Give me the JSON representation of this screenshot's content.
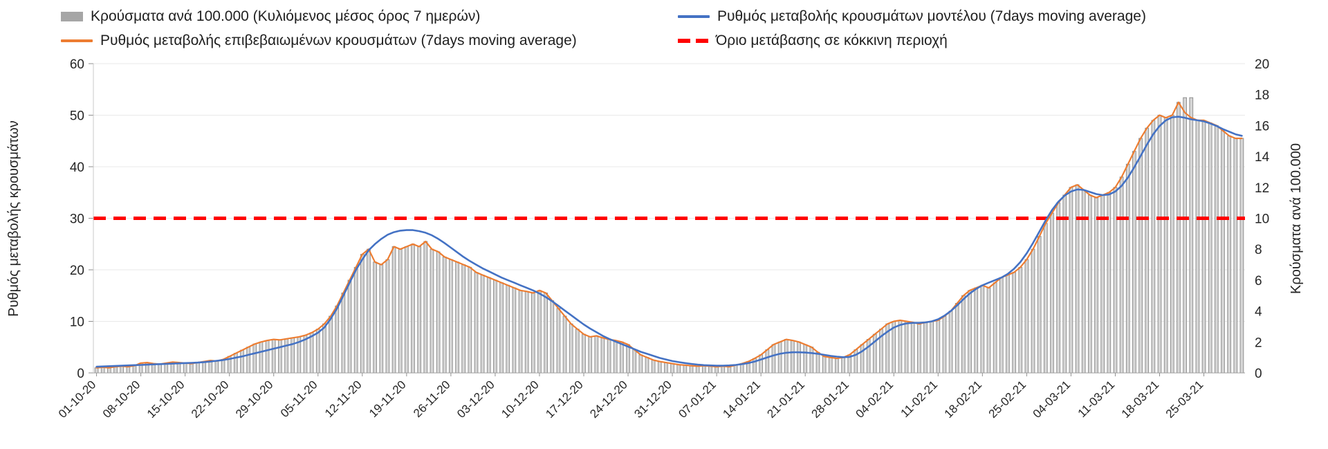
{
  "legend": {
    "items": [
      {
        "id": "cases_per_100k",
        "label": "Κρούσματα ανά 100.000 (Κυλιόμενος μέσος όρος 7 ημερών)",
        "swatch": "#a6a6a6"
      },
      {
        "id": "model_rate",
        "label": "Ρυθμός μεταβολής κρουσμάτων μοντέλου (7days moving average)",
        "swatch": "#4472c4"
      },
      {
        "id": "confirmed_rate",
        "label": "Ρυθμός μεταβολής επιβεβαιωμένων κρουσμάτων (7days moving average)",
        "swatch": "#ed7d31"
      },
      {
        "id": "threshold",
        "label": "Όριο μετάβασης σε κόκκινη περιοχή",
        "swatch": "#ff0000"
      }
    ]
  },
  "chart_data": {
    "type": "combo",
    "n_points": 182,
    "x_tick_interval": 7,
    "x_tick_labels": [
      "01-10-20",
      "08-10-20",
      "15-10-20",
      "22-10-20",
      "29-10-20",
      "05-11-20",
      "12-11-20",
      "19-11-20",
      "26-11-20",
      "03-12-20",
      "10-12-20",
      "17-12-20",
      "24-12-20",
      "31-12-20",
      "07-01-21",
      "14-01-21",
      "21-01-21",
      "28-01-21",
      "04-02-21",
      "11-02-21",
      "18-02-21",
      "25-02-21",
      "04-03-21",
      "11-03-21",
      "18-03-21",
      "25-03-21"
    ],
    "left_axis": {
      "title": "Ρυθμός μεταβολής κρουσμάτων",
      "min": 0,
      "max": 60,
      "ticks": [
        0,
        10,
        20,
        30,
        40,
        50,
        60
      ]
    },
    "right_axis": {
      "title": "Κρούσματα ανά 100.000",
      "min": 0,
      "max": 20,
      "ticks": [
        0,
        2,
        4,
        6,
        8,
        10,
        12,
        14,
        16,
        18,
        20
      ]
    },
    "threshold": {
      "value": 30,
      "axis": "left",
      "color": "#ff0000",
      "label": "Όριο μετάβασης σε κόκκινη περιοχή"
    },
    "grid": "horizontal",
    "legend_position": "top",
    "series": [
      {
        "id": "cases_per_100k",
        "name": "Κρούσματα ανά 100.000 (Κυλιόμενος μέσος όρος 7 ημερών)",
        "type": "bar",
        "axis": "right",
        "fill": "#d6d6d6",
        "stroke": "#8f8f8f",
        "values": [
          0.33,
          0.37,
          0.33,
          0.4,
          0.43,
          0.4,
          0.47,
          0.63,
          0.67,
          0.6,
          0.57,
          0.63,
          0.7,
          0.67,
          0.63,
          0.6,
          0.67,
          0.73,
          0.8,
          0.77,
          0.87,
          1.07,
          1.27,
          1.47,
          1.67,
          1.87,
          2.0,
          2.1,
          2.17,
          2.13,
          2.2,
          2.27,
          2.33,
          2.43,
          2.6,
          2.83,
          3.17,
          3.67,
          4.33,
          5.17,
          6.0,
          6.83,
          7.67,
          8.0,
          7.17,
          7.0,
          7.33,
          8.17,
          8.0,
          8.17,
          8.33,
          8.17,
          8.5,
          8.0,
          7.83,
          7.5,
          7.33,
          7.17,
          7.0,
          6.83,
          6.5,
          6.33,
          6.17,
          6.0,
          5.83,
          5.67,
          5.5,
          5.33,
          5.27,
          5.17,
          5.33,
          5.17,
          4.67,
          4.17,
          3.67,
          3.17,
          2.83,
          2.5,
          2.33,
          2.4,
          2.27,
          2.17,
          2.1,
          2.0,
          1.83,
          1.5,
          1.17,
          1.0,
          0.83,
          0.73,
          0.67,
          0.6,
          0.53,
          0.5,
          0.47,
          0.43,
          0.47,
          0.43,
          0.4,
          0.43,
          0.4,
          0.5,
          0.6,
          0.73,
          0.93,
          1.17,
          1.5,
          1.83,
          2.0,
          2.17,
          2.1,
          2.0,
          1.83,
          1.67,
          1.33,
          1.07,
          1.0,
          0.93,
          1.0,
          1.17,
          1.5,
          1.83,
          2.17,
          2.5,
          2.83,
          3.17,
          3.33,
          3.4,
          3.33,
          3.27,
          3.17,
          3.27,
          3.33,
          3.4,
          3.67,
          4.0,
          4.5,
          5.0,
          5.33,
          5.5,
          5.67,
          5.5,
          5.83,
          6.17,
          6.33,
          6.5,
          6.83,
          7.33,
          8.0,
          8.83,
          9.67,
          10.33,
          11.0,
          11.5,
          12.0,
          12.17,
          11.83,
          11.5,
          11.33,
          11.5,
          11.67,
          12.0,
          12.67,
          13.5,
          14.33,
          15.17,
          15.83,
          16.33,
          16.67,
          16.5,
          16.67,
          17.5,
          17.8,
          17.8,
          16.33,
          16.33,
          16.17,
          16.0,
          15.67,
          15.33,
          15.17,
          15.17
        ]
      },
      {
        "id": "confirmed_rate",
        "name": "Ρυθμός μεταβολής επιβεβαιωμένων κρουσμάτων (7days moving average)",
        "type": "line",
        "axis": "left",
        "color": "#ed7d31",
        "width": 2.2,
        "values": [
          1.0,
          1.1,
          1.0,
          1.2,
          1.3,
          1.2,
          1.4,
          1.9,
          2.0,
          1.8,
          1.7,
          1.9,
          2.1,
          2.0,
          1.9,
          1.8,
          2.0,
          2.2,
          2.4,
          2.3,
          2.6,
          3.2,
          3.8,
          4.4,
          5.0,
          5.6,
          6.0,
          6.3,
          6.5,
          6.4,
          6.6,
          6.8,
          7.0,
          7.3,
          7.8,
          8.5,
          9.5,
          11.0,
          13.0,
          15.5,
          18.0,
          20.5,
          23.0,
          24.0,
          21.5,
          21.0,
          22.0,
          24.5,
          24.0,
          24.5,
          25.0,
          24.5,
          25.5,
          24.0,
          23.5,
          22.5,
          22.0,
          21.5,
          21.0,
          20.5,
          19.5,
          19.0,
          18.5,
          18.0,
          17.5,
          17.0,
          16.5,
          16.0,
          15.8,
          15.5,
          16.0,
          15.5,
          14.0,
          12.5,
          11.0,
          9.5,
          8.5,
          7.5,
          7.0,
          7.2,
          6.8,
          6.5,
          6.3,
          6.0,
          5.5,
          4.5,
          3.5,
          3.0,
          2.5,
          2.2,
          2.0,
          1.8,
          1.6,
          1.5,
          1.4,
          1.3,
          1.4,
          1.3,
          1.2,
          1.3,
          1.2,
          1.5,
          1.8,
          2.2,
          2.8,
          3.5,
          4.5,
          5.5,
          6.0,
          6.5,
          6.3,
          6.0,
          5.5,
          5.0,
          4.0,
          3.2,
          3.0,
          2.8,
          3.0,
          3.5,
          4.5,
          5.5,
          6.5,
          7.5,
          8.5,
          9.5,
          10.0,
          10.2,
          10.0,
          9.8,
          9.5,
          9.8,
          10.0,
          10.2,
          11.0,
          12.0,
          13.5,
          15.0,
          16.0,
          16.5,
          17.0,
          16.5,
          17.5,
          18.5,
          19.0,
          19.5,
          20.5,
          22.0,
          24.0,
          26.5,
          29.0,
          31.0,
          33.0,
          34.5,
          36.0,
          36.5,
          35.5,
          34.5,
          34.0,
          34.5,
          35.0,
          36.0,
          38.0,
          40.5,
          43.0,
          45.5,
          47.5,
          49.0,
          50.0,
          49.5,
          50.0,
          52.5,
          50.5,
          49.5,
          49.0,
          49.0,
          48.5,
          48.0,
          47.0,
          46.0,
          45.5,
          45.5
        ]
      },
      {
        "id": "model_rate",
        "name": "Ρυθμός μεταβολής κρουσμάτων μοντέλου (7days moving average)",
        "type": "line",
        "axis": "left",
        "color": "#4472c4",
        "width": 2.6,
        "values": [
          1.2,
          1.25,
          1.3,
          1.35,
          1.4,
          1.45,
          1.5,
          1.55,
          1.6,
          1.65,
          1.7,
          1.75,
          1.8,
          1.85,
          1.9,
          1.95,
          2.0,
          2.1,
          2.2,
          2.35,
          2.5,
          2.7,
          2.95,
          3.2,
          3.5,
          3.8,
          4.1,
          4.4,
          4.7,
          5.0,
          5.3,
          5.6,
          6.0,
          6.5,
          7.1,
          7.8,
          8.8,
          10.5,
          12.5,
          15.0,
          17.5,
          20.0,
          22.0,
          23.8,
          25.0,
          26.0,
          26.8,
          27.3,
          27.6,
          27.7,
          27.7,
          27.5,
          27.2,
          26.7,
          26.0,
          25.2,
          24.3,
          23.4,
          22.5,
          21.7,
          21.0,
          20.3,
          19.7,
          19.1,
          18.5,
          18.0,
          17.5,
          17.0,
          16.5,
          16.0,
          15.4,
          14.7,
          13.9,
          13.0,
          12.1,
          11.2,
          10.3,
          9.4,
          8.6,
          7.9,
          7.2,
          6.6,
          6.1,
          5.6,
          5.1,
          4.6,
          4.1,
          3.7,
          3.3,
          2.9,
          2.6,
          2.3,
          2.1,
          1.9,
          1.75,
          1.6,
          1.5,
          1.45,
          1.4,
          1.4,
          1.45,
          1.55,
          1.7,
          1.9,
          2.2,
          2.6,
          3.0,
          3.4,
          3.7,
          3.9,
          4.0,
          4.0,
          3.95,
          3.85,
          3.7,
          3.5,
          3.3,
          3.15,
          3.05,
          3.1,
          3.5,
          4.2,
          5.1,
          6.1,
          7.1,
          8.0,
          8.8,
          9.3,
          9.6,
          9.7,
          9.7,
          9.8,
          10.0,
          10.4,
          11.1,
          12.0,
          13.1,
          14.3,
          15.4,
          16.3,
          17.0,
          17.5,
          18.0,
          18.5,
          19.2,
          20.2,
          21.5,
          23.2,
          25.2,
          27.4,
          29.6,
          31.6,
          33.2,
          34.4,
          35.2,
          35.6,
          35.5,
          35.1,
          34.7,
          34.5,
          34.6,
          35.2,
          36.3,
          37.9,
          39.9,
          42.1,
          44.3,
          46.3,
          47.9,
          49.0,
          49.6,
          49.7,
          49.5,
          49.2,
          49.0,
          48.8,
          48.4,
          47.9,
          47.3,
          46.8,
          46.3,
          46.0
        ]
      }
    ]
  }
}
